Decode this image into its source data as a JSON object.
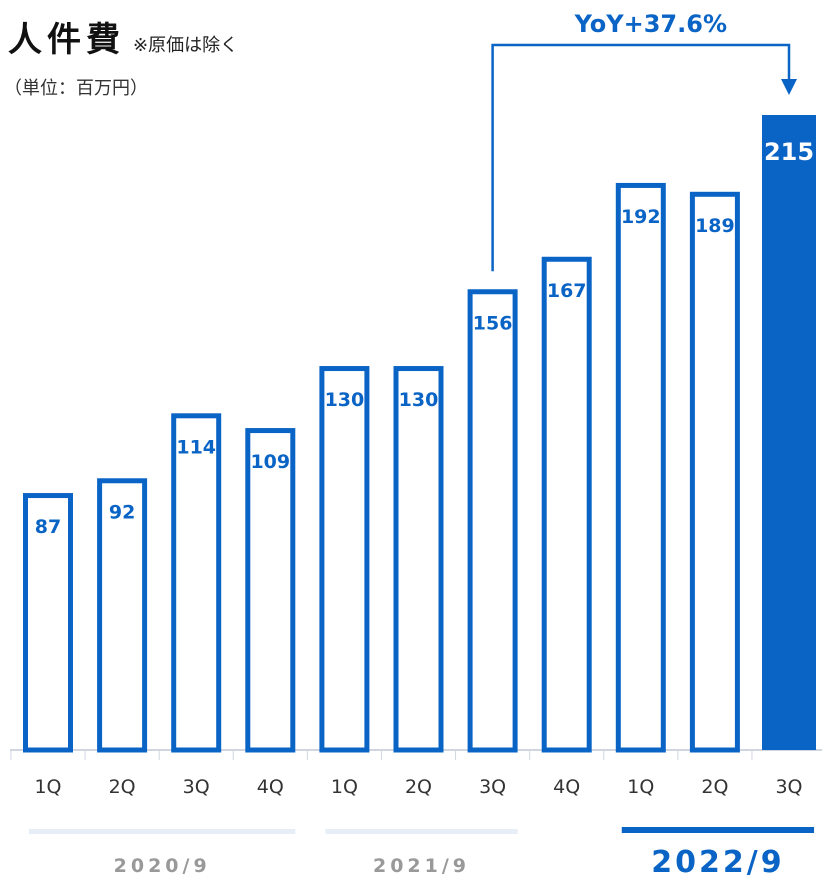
{
  "title": "人件費",
  "subtitle": "※原価は除く",
  "unit": "（単位：百万円）",
  "colors": {
    "primary": "#0a64c6",
    "primary_light": "#e8eef7",
    "fill_highlight": "#0a64c6",
    "text": "#333333"
  },
  "chart_data": {
    "type": "bar",
    "title": "人件費",
    "subtitle": "※原価は除く",
    "ylabel": "（単位：百万円）",
    "categories": [
      "1Q",
      "2Q",
      "3Q",
      "4Q",
      "1Q",
      "2Q",
      "3Q",
      "4Q",
      "1Q",
      "2Q",
      "3Q"
    ],
    "values": [
      87,
      92,
      114,
      109,
      130,
      130,
      156,
      167,
      192,
      189,
      215
    ],
    "highlight_index": 10,
    "ylim": [
      0,
      215
    ],
    "grid": false,
    "legend": "none",
    "groups": [
      {
        "label": "2020/9",
        "start": 0,
        "end": 3,
        "emphasis": false
      },
      {
        "label": "2021/9",
        "start": 4,
        "end": 6,
        "emphasis": false
      },
      {
        "label": "2022/9",
        "start": 8,
        "end": 10,
        "emphasis": true
      }
    ],
    "annotation": {
      "text": "YoY+37.6%",
      "from_index": 6,
      "to_index": 10
    }
  }
}
